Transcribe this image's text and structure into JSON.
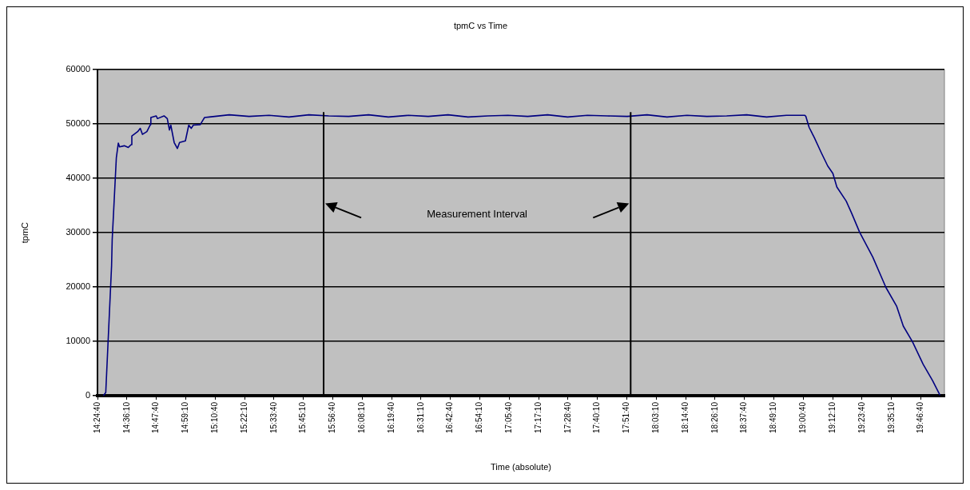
{
  "chart_data": {
    "type": "line",
    "title": "tpmC vs Time",
    "xlabel": "Time (absolute)",
    "ylabel": "tpmC",
    "xlim": [
      14.4111,
      19.931
    ],
    "ylim": [
      0,
      60000
    ],
    "xticks": [
      {
        "value": 14.4111,
        "label": "14:24:40"
      },
      {
        "value": 14.6028,
        "label": "14:36:10"
      },
      {
        "value": 14.7944,
        "label": "14:47:40"
      },
      {
        "value": 14.9861,
        "label": "14:59:10"
      },
      {
        "value": 15.1778,
        "label": "15:10:40"
      },
      {
        "value": 15.3694,
        "label": "15:22:10"
      },
      {
        "value": 15.5611,
        "label": "15:33:40"
      },
      {
        "value": 15.7528,
        "label": "15:45:10"
      },
      {
        "value": 15.9444,
        "label": "15:56:40"
      },
      {
        "value": 16.1361,
        "label": "16:08:10"
      },
      {
        "value": 16.3278,
        "label": "16:19:40"
      },
      {
        "value": 16.5194,
        "label": "16:31:10"
      },
      {
        "value": 16.7111,
        "label": "16:42:40"
      },
      {
        "value": 16.9028,
        "label": "16:54:10"
      },
      {
        "value": 17.0944,
        "label": "17:05:40"
      },
      {
        "value": 17.2861,
        "label": "17:17:10"
      },
      {
        "value": 17.4778,
        "label": "17:28:40"
      },
      {
        "value": 17.6694,
        "label": "17:40:10"
      },
      {
        "value": 17.8611,
        "label": "17:51:40"
      },
      {
        "value": 18.0528,
        "label": "18:03:10"
      },
      {
        "value": 18.2444,
        "label": "18:14:40"
      },
      {
        "value": 18.4361,
        "label": "18:26:10"
      },
      {
        "value": 18.6278,
        "label": "18:37:40"
      },
      {
        "value": 18.8194,
        "label": "18:49:10"
      },
      {
        "value": 19.0111,
        "label": "19:00:40"
      },
      {
        "value": 19.2028,
        "label": "19:12:10"
      },
      {
        "value": 19.3944,
        "label": "19:23:40"
      },
      {
        "value": 19.5861,
        "label": "19:35:10"
      },
      {
        "value": 19.7778,
        "label": "19:46:40"
      }
    ],
    "yticks": [
      0,
      10000,
      20000,
      30000,
      40000,
      50000,
      60000
    ],
    "grid": "y",
    "legend": false,
    "marker": "none",
    "line_style": "solid",
    "series": [
      {
        "color": "#000080",
        "x": [
          14.45,
          14.465,
          14.503,
          14.507,
          14.534,
          14.547,
          14.555,
          14.586,
          14.612,
          14.63,
          14.635,
          14.673,
          14.69,
          14.704,
          14.733,
          14.756,
          14.759,
          14.794,
          14.802,
          14.845,
          14.866,
          14.88,
          14.889,
          14.911,
          14.932,
          14.946,
          14.984,
          15.006,
          15.022,
          15.036,
          15.081,
          15.109,
          15.14,
          15.27,
          15.399,
          15.529,
          15.659,
          15.789,
          15.918,
          16.048,
          16.178,
          16.307,
          16.437,
          16.567,
          16.696,
          16.826,
          16.956,
          17.086,
          17.215,
          17.345,
          17.475,
          17.604,
          17.734,
          17.864,
          17.993,
          18.123,
          18.253,
          18.383,
          18.512,
          18.642,
          18.772,
          18.901,
          19.021,
          19.028,
          19.049,
          19.083,
          19.127,
          19.17,
          19.204,
          19.23,
          19.291,
          19.326,
          19.378,
          19.464,
          19.55,
          19.619,
          19.663,
          19.723,
          19.792,
          19.853,
          19.902
        ],
        "values": [
          0,
          600,
          23900,
          28700,
          43800,
          46500,
          45800,
          46000,
          45700,
          46200,
          47800,
          48600,
          49200,
          48100,
          48600,
          49900,
          51200,
          51500,
          51000,
          51500,
          51000,
          48900,
          49800,
          46600,
          45500,
          46600,
          46900,
          49800,
          49200,
          49800,
          49900,
          51200,
          51300,
          51700,
          51400,
          51600,
          51300,
          51700,
          51500,
          51400,
          51700,
          51300,
          51600,
          51400,
          51700,
          51300,
          51500,
          51600,
          51400,
          51700,
          51300,
          51600,
          51500,
          51400,
          51700,
          51300,
          51600,
          51400,
          51500,
          51700,
          51300,
          51600,
          51600,
          51400,
          49400,
          47500,
          44800,
          42300,
          40900,
          38400,
          35800,
          33600,
          30100,
          25500,
          19900,
          16500,
          12800,
          9900,
          5800,
          2800,
          100
        ]
      }
    ],
    "ref_lines": [
      {
        "axis": "x",
        "value": 15.885,
        "color": "#000000"
      },
      {
        "axis": "x",
        "value": 17.886,
        "color": "#000000"
      }
    ],
    "annotations": [
      "Measurement Interval"
    ]
  }
}
